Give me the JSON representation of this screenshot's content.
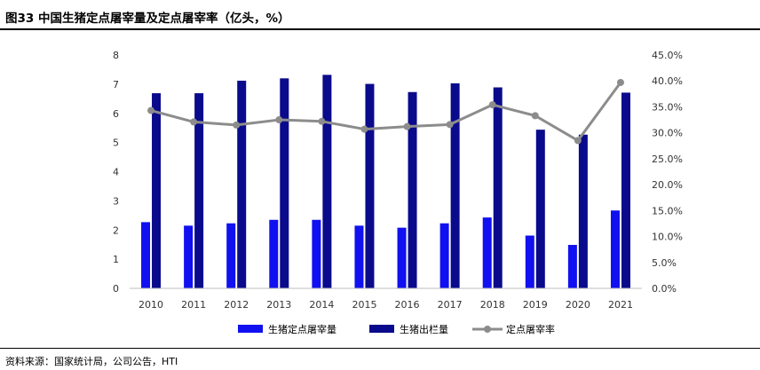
{
  "figure": {
    "title": "图33 中国生猪定点屠宰量及定点屠宰率（亿头，%）",
    "source": "资料来源：国家统计局，公司公告，HTI"
  },
  "colors": {
    "slaughter_volume": "#1010f0",
    "hog_output": "#0a0a8c",
    "slaughter_rate": "#8c8c8c"
  },
  "chart_data": {
    "type": "bar",
    "title": "",
    "xlabel": "",
    "ylabel": "",
    "categories": [
      "2010",
      "2011",
      "2012",
      "2013",
      "2014",
      "2015",
      "2016",
      "2017",
      "2018",
      "2019",
      "2020",
      "2021"
    ],
    "ylim": [
      0,
      8
    ],
    "y_ticks": [
      "0",
      "1",
      "2",
      "3",
      "4",
      "5",
      "6",
      "7",
      "8"
    ],
    "y2lim": [
      0,
      0.45
    ],
    "y2_ticks": [
      "0.0%",
      "5.0%",
      "10.0%",
      "15.0%",
      "20.0%",
      "25.0%",
      "30.0%",
      "35.0%",
      "40.0%",
      "45.0%"
    ],
    "legend_position": "bottom",
    "grid": false,
    "series": [
      {
        "name": "生猪定点屠宰量",
        "type": "bar",
        "axis": "left",
        "values": [
          2.27,
          2.15,
          2.23,
          2.35,
          2.35,
          2.15,
          2.08,
          2.23,
          2.43,
          1.81,
          1.49,
          2.67
        ]
      },
      {
        "name": "生猪出栏量",
        "type": "bar",
        "axis": "left",
        "values": [
          6.69,
          6.69,
          7.12,
          7.2,
          7.32,
          7.01,
          6.73,
          7.03,
          6.89,
          5.44,
          5.27,
          6.71
        ]
      },
      {
        "name": "定点屠宰率",
        "type": "line",
        "axis": "right",
        "values": [
          0.343,
          0.321,
          0.315,
          0.325,
          0.322,
          0.307,
          0.312,
          0.316,
          0.354,
          0.333,
          0.285,
          0.397
        ]
      }
    ]
  }
}
